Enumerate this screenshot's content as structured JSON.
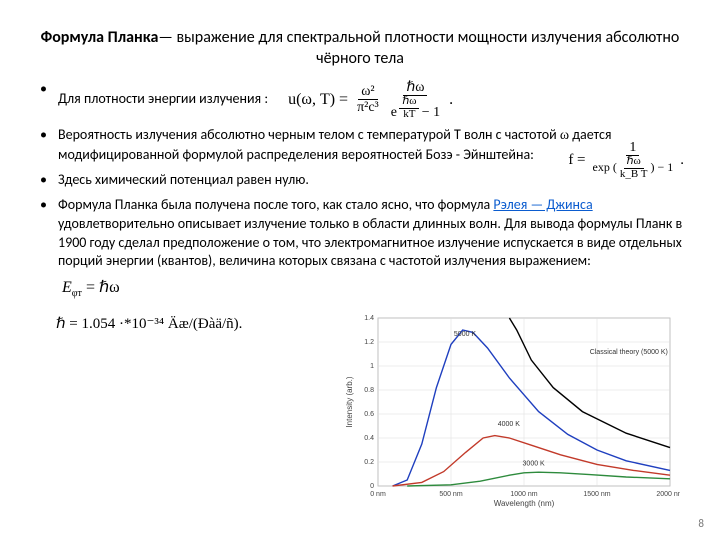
{
  "title_bold": "Формула Планка",
  "title_rest": "— выражение для спектральной плотности мощности излучения абсолютно чёрного тела",
  "bullets": {
    "b1": "Для плотности энергии излучения :",
    "b2_a": " Вероятность излучения абсолютно черным телом с температурой T  волн с частотой ",
    "b2_omega": "ω",
    "b2_b": " дается модифицированной формулой  распределения вероятностей Бозэ - Эйнштейна:",
    "b3": " Здесь химический потенциал равен нулю.",
    "b4_a": "Формула Планка была получена после того, как стало ясно, что формула ",
    "b4_link": "Рэлея — Джинса",
    "b4_b": " удовлетворительно описывает излучение только в области длинных волн. Для вывода формулы Планк в 1900 году сделал предположение о том, что электромагнитное излучение испускается в виде отдельных порций энергии (квантов), величина которых связана с частотой излучения выражением:"
  },
  "formula1": {
    "lhs": "u(ω, T) =",
    "f1_num": "ω²",
    "f1_den": "π²c³",
    "f2_num": "ℏω",
    "exp_num": "ℏω",
    "exp_den": "kT",
    "minus": "− 1"
  },
  "formula2": {
    "lhs": "f =",
    "num": "1",
    "exp_lead": "exp",
    "exp_num": "ℏω",
    "exp_den": "k_B T",
    "minus": "− 1"
  },
  "eq_energy": "E_φт = ℏω",
  "hbar_line": "ℏ = 1.054 ·*10⁻³⁴ Äæ/(Ðàä/ñ).",
  "chart": {
    "type": "line",
    "xlabel": "Wavelength (nm)",
    "ylabel": "Intensity (arb.)",
    "xlim": [
      0,
      2000
    ],
    "ylim": [
      0,
      1.4
    ],
    "xticks": [
      0,
      500,
      1000,
      1500,
      2000
    ],
    "yticks": [
      0,
      0.2,
      0.4,
      0.6,
      0.8,
      1.0,
      1.2,
      1.4
    ],
    "xtick_suffix": " nm",
    "background_color": "#ffffff",
    "grid_color": "#dddddd",
    "axis_color": "#666666",
    "curves": [
      {
        "name": "5000 K",
        "color": "#1f3fbf",
        "label_xy": [
          520,
          1.25
        ],
        "points": [
          [
            100,
            0
          ],
          [
            200,
            0.05
          ],
          [
            300,
            0.35
          ],
          [
            400,
            0.82
          ],
          [
            500,
            1.18
          ],
          [
            580,
            1.3
          ],
          [
            650,
            1.28
          ],
          [
            750,
            1.15
          ],
          [
            900,
            0.9
          ],
          [
            1100,
            0.62
          ],
          [
            1300,
            0.43
          ],
          [
            1500,
            0.3
          ],
          [
            1700,
            0.21
          ],
          [
            2000,
            0.13
          ]
        ]
      },
      {
        "name": "4000 K",
        "color": "#c23a2a",
        "label_xy": [
          820,
          0.5
        ],
        "points": [
          [
            100,
            0
          ],
          [
            300,
            0.03
          ],
          [
            450,
            0.12
          ],
          [
            600,
            0.28
          ],
          [
            720,
            0.4
          ],
          [
            800,
            0.42
          ],
          [
            900,
            0.4
          ],
          [
            1050,
            0.34
          ],
          [
            1250,
            0.26
          ],
          [
            1500,
            0.18
          ],
          [
            1750,
            0.13
          ],
          [
            2000,
            0.09
          ]
        ]
      },
      {
        "name": "3000 K",
        "color": "#2e8b3d",
        "label_xy": [
          990,
          0.17
        ],
        "points": [
          [
            200,
            0
          ],
          [
            500,
            0.01
          ],
          [
            700,
            0.04
          ],
          [
            900,
            0.09
          ],
          [
            1000,
            0.11
          ],
          [
            1100,
            0.115
          ],
          [
            1250,
            0.11
          ],
          [
            1450,
            0.095
          ],
          [
            1700,
            0.075
          ],
          [
            2000,
            0.06
          ]
        ]
      },
      {
        "name": "Classical theory (5000 K)",
        "color": "#000000",
        "label_xy": [
          1450,
          1.1
        ],
        "points": [
          [
            2000,
            0.32
          ],
          [
            1700,
            0.44
          ],
          [
            1400,
            0.62
          ],
          [
            1200,
            0.82
          ],
          [
            1050,
            1.05
          ],
          [
            950,
            1.3
          ],
          [
            900,
            1.4
          ]
        ]
      }
    ]
  },
  "pagenum": "8"
}
